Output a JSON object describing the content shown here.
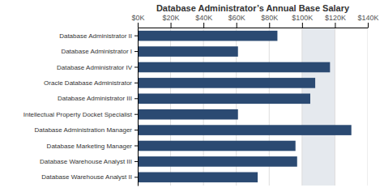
{
  "chart_data": {
    "type": "bar",
    "orientation": "horizontal",
    "title": "Database Administrator’s Annual Base Salary",
    "categories": [
      "Database Warehouse Analyst II",
      "Database Warehouse Analyst III",
      "Database Marketing Manager",
      "Database Administration Manager",
      "Intellectual Property Docket Specialist",
      "Database Administrator III",
      "Oracle Database Administrator",
      "Database Administrator IV",
      "Database Administrator I",
      "Database Administrator II"
    ],
    "values": [
      73000,
      97000,
      96000,
      130000,
      61000,
      105000,
      108000,
      117000,
      61000,
      85000
    ],
    "color": "#2b4a72",
    "xlim": [
      0,
      140000
    ],
    "xticks": [
      {
        "value": 0,
        "label": "$0K"
      },
      {
        "value": 20000,
        "label": "$20K"
      },
      {
        "value": 40000,
        "label": "$40K"
      },
      {
        "value": 60000,
        "label": "$60K"
      },
      {
        "value": 80000,
        "label": "$80K"
      },
      {
        "value": 100000,
        "label": "$100K"
      },
      {
        "value": 120000,
        "label": "$120K"
      },
      {
        "value": 140000,
        "label": "$140K"
      }
    ],
    "highlight_range": [
      100000,
      120000
    ],
    "grid": true
  }
}
